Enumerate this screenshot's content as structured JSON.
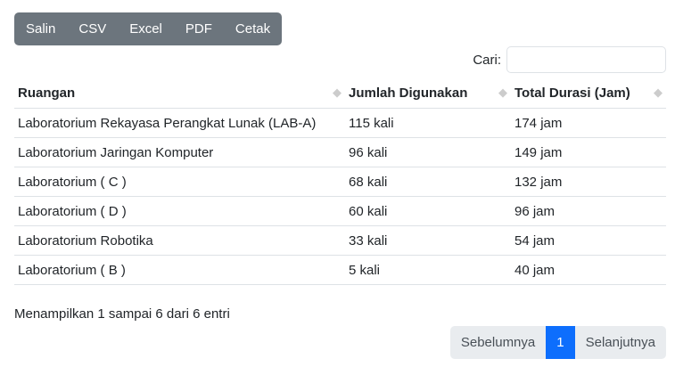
{
  "toolbar": {
    "buttons": [
      "Salin",
      "CSV",
      "Excel",
      "PDF",
      "Cetak"
    ]
  },
  "search": {
    "label": "Cari:",
    "value": ""
  },
  "table": {
    "headers": [
      "Ruangan",
      "Jumlah Digunakan",
      "Total Durasi (Jam)"
    ],
    "rows": [
      [
        "Laboratorium Rekayasa Perangkat Lunak (LAB-A)",
        "115 kali",
        "174 jam"
      ],
      [
        "Laboratorium Jaringan Komputer",
        "96 kali",
        "149 jam"
      ],
      [
        "Laboratorium ( C )",
        "68 kali",
        "132 jam"
      ],
      [
        "Laboratorium ( D )",
        "60 kali",
        "96 jam"
      ],
      [
        "Laboratorium Robotika",
        "33 kali",
        "54 jam"
      ],
      [
        "Laboratorium ( B )",
        "5 kali",
        "40 jam"
      ]
    ]
  },
  "info": "Menampilkan 1 sampai 6 dari 6 entri",
  "pagination": {
    "previous": "Sebelumnya",
    "current": "1",
    "next": "Selanjutnya"
  },
  "colors": {
    "toolbar": "#6c757d",
    "active_page": "#0d6efd"
  }
}
